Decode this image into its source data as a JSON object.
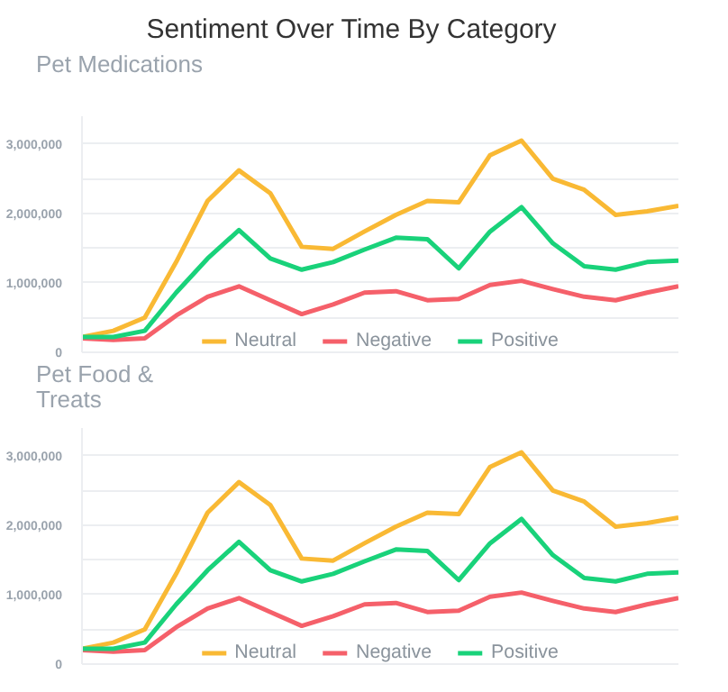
{
  "chart_data": [
    {
      "type": "line",
      "title": "Sentiment Over Time By Category",
      "subtitle": "Pet Medications",
      "categories": [
        null,
        null,
        null,
        null,
        null,
        null,
        null,
        null,
        null,
        null,
        null,
        null,
        null,
        null,
        null,
        null,
        null,
        null,
        null,
        null
      ],
      "series": [
        {
          "name": "Neutral",
          "color": "#f9b934",
          "values": [
            220000,
            310000,
            500000,
            1300000,
            2180000,
            2620000,
            2290000,
            1520000,
            1490000,
            1740000,
            1980000,
            2180000,
            2160000,
            2840000,
            3050000,
            2500000,
            2340000,
            1980000,
            2030000,
            2110000
          ]
        },
        {
          "name": "Negative",
          "color": "#f5606a",
          "values": [
            200000,
            180000,
            200000,
            530000,
            800000,
            950000,
            750000,
            550000,
            690000,
            860000,
            880000,
            750000,
            770000,
            970000,
            1030000,
            910000,
            800000,
            750000,
            860000,
            950000
          ]
        },
        {
          "name": "Positive",
          "color": "#19d27a",
          "values": [
            220000,
            220000,
            310000,
            860000,
            1350000,
            1760000,
            1350000,
            1190000,
            1300000,
            1480000,
            1650000,
            1630000,
            1210000,
            1740000,
            2090000,
            1570000,
            1240000,
            1190000,
            1300000,
            1320000
          ]
        }
      ],
      "ylim": [
        0,
        3400000
      ],
      "yticks": [
        0,
        {
          "value": 500000,
          "label": null
        },
        {
          "value": 1000000,
          "label": "1,000,000"
        },
        {
          "value": 1500000,
          "label": null
        },
        {
          "value": 2000000,
          "label": "2,000,000"
        },
        {
          "value": 2500000,
          "label": null
        },
        {
          "value": 3000000,
          "label": "3,000,000"
        }
      ],
      "grid": "y",
      "legend": "bottom",
      "tick_labels": "y",
      "line_style": "solid",
      "marker": "none"
    },
    {
      "type": "line",
      "subtitle": "Pet Food & Treats",
      "categories": [
        null,
        null,
        null,
        null,
        null,
        null,
        null,
        null,
        null,
        null,
        null,
        null,
        null,
        null,
        null,
        null,
        null,
        null,
        null,
        null
      ],
      "series": [
        {
          "name": "Neutral",
          "color": "#f9b934",
          "values": [
            220000,
            310000,
            500000,
            1300000,
            2180000,
            2620000,
            2290000,
            1520000,
            1490000,
            1740000,
            1980000,
            2180000,
            2160000,
            2840000,
            3050000,
            2500000,
            2340000,
            1980000,
            2030000,
            2110000
          ]
        },
        {
          "name": "Negative",
          "color": "#f5606a",
          "values": [
            200000,
            180000,
            200000,
            530000,
            800000,
            950000,
            750000,
            550000,
            690000,
            860000,
            880000,
            750000,
            770000,
            970000,
            1030000,
            910000,
            800000,
            750000,
            860000,
            950000
          ]
        },
        {
          "name": "Positive",
          "color": "#19d27a",
          "values": [
            220000,
            220000,
            310000,
            860000,
            1350000,
            1760000,
            1350000,
            1190000,
            1300000,
            1480000,
            1650000,
            1630000,
            1210000,
            1740000,
            2090000,
            1570000,
            1240000,
            1190000,
            1300000,
            1320000
          ]
        }
      ],
      "ylim": [
        0,
        3400000
      ],
      "yticks": [
        0,
        {
          "value": 500000,
          "label": null
        },
        {
          "value": 1000000,
          "label": "1,000,000"
        },
        {
          "value": 1500000,
          "label": null
        },
        {
          "value": 2000000,
          "label": "2,000,000"
        },
        {
          "value": 2500000,
          "label": null
        },
        {
          "value": 3000000,
          "label": "3,000,000"
        }
      ],
      "grid": "y",
      "legend": "bottom",
      "tick_labels": "y",
      "line_style": "solid",
      "marker": "none"
    }
  ]
}
